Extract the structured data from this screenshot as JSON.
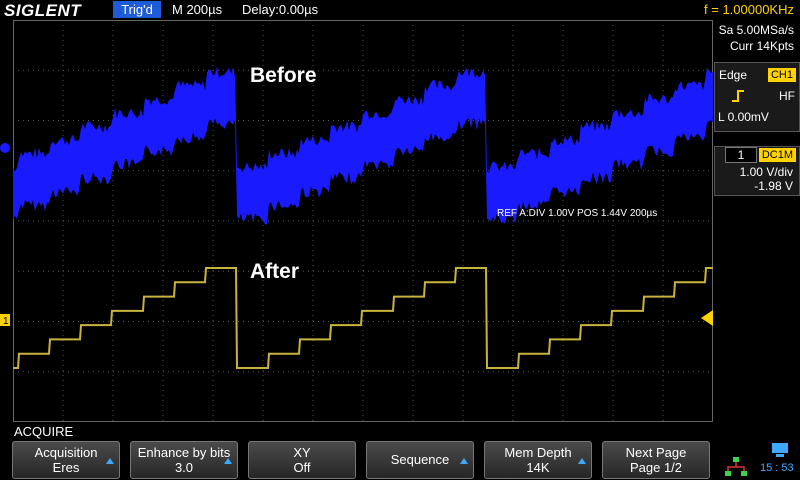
{
  "header": {
    "brand": "SIGLENT",
    "trigger_status": "Trig'd",
    "timebase": "M 200µs",
    "delay": "Delay:0.00µs",
    "frequency": "f = 1.00000KHz"
  },
  "acquisition_info": {
    "sample_rate": "Sa 5.00MSa/s",
    "memory": "Curr 14Kpts"
  },
  "trigger_panel": {
    "type": "Edge",
    "source": "CH1",
    "coupling": "HF",
    "level": "L  0.00mV"
  },
  "channel_panel": {
    "channel": "1",
    "coupling": "DC1M",
    "scale": "1.00 V/div",
    "offset": "-1.98 V"
  },
  "waveform": {
    "annotation_before": "Before",
    "annotation_after": "After",
    "ref_info": "REF  A:DIV 1.00V   POS 1.44V  200µs",
    "colors": {
      "raw": "#1a1aff",
      "filtered": "#c8b43c",
      "grid": "#555555"
    }
  },
  "menu": {
    "title": "ACQUIRE",
    "buttons": [
      {
        "label": "Acquisition",
        "value": "Eres"
      },
      {
        "label": "Enhance by bits",
        "value": "3.0"
      },
      {
        "label": "XY",
        "value": "Off"
      },
      {
        "label": "Sequence",
        "value": ""
      },
      {
        "label": "Mem Depth",
        "value": "14K"
      },
      {
        "label": "Next Page",
        "value": "Page 1/2"
      }
    ]
  },
  "status": {
    "time": "15 : 53"
  }
}
